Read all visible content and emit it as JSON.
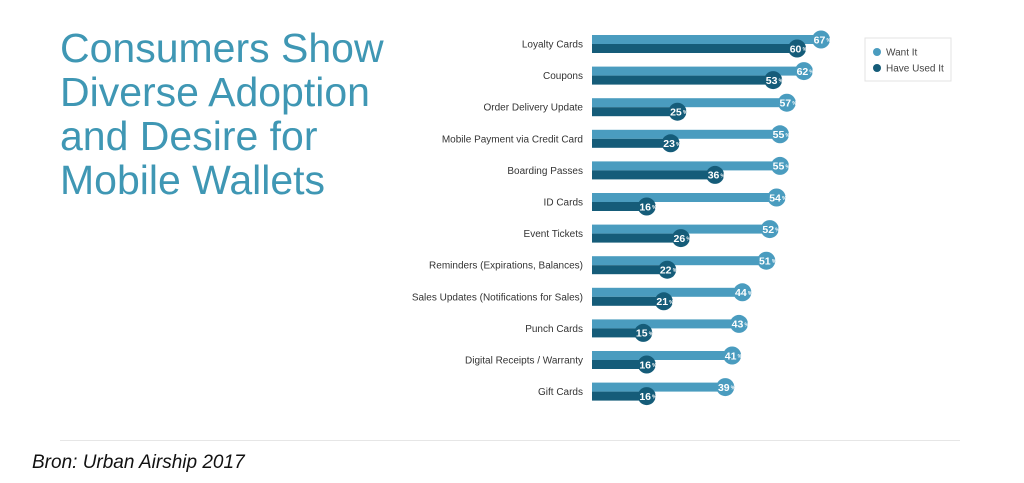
{
  "title": "Consumers Show Diverse Adoption and Desire for Mobile Wallets",
  "source": "Bron: Urban Airship 2017",
  "colors": {
    "want": "#4a9cbf",
    "used": "#155c79",
    "title": "#3f97b4"
  },
  "chart_data": {
    "type": "bar",
    "orientation": "horizontal",
    "categories": [
      "Loyalty Cards",
      "Coupons",
      "Order Delivery Update",
      "Mobile Payment via Credit Card",
      "Boarding Passes",
      "ID Cards",
      "Event Tickets",
      "Reminders (Expirations, Balances)",
      "Sales Updates (Notifications for Sales)",
      "Punch Cards",
      "Digital Receipts / Warranty",
      "Gift Cards"
    ],
    "series": [
      {
        "name": "Want It",
        "values": [
          67,
          62,
          57,
          55,
          55,
          54,
          52,
          51,
          44,
          43,
          41,
          39
        ]
      },
      {
        "name": "Have Used It",
        "values": [
          60,
          53,
          25,
          23,
          36,
          16,
          26,
          22,
          21,
          15,
          16,
          16
        ]
      }
    ],
    "value_suffix": "%",
    "xlim": [
      0,
      70
    ],
    "legend": "top-right",
    "grid": false
  }
}
